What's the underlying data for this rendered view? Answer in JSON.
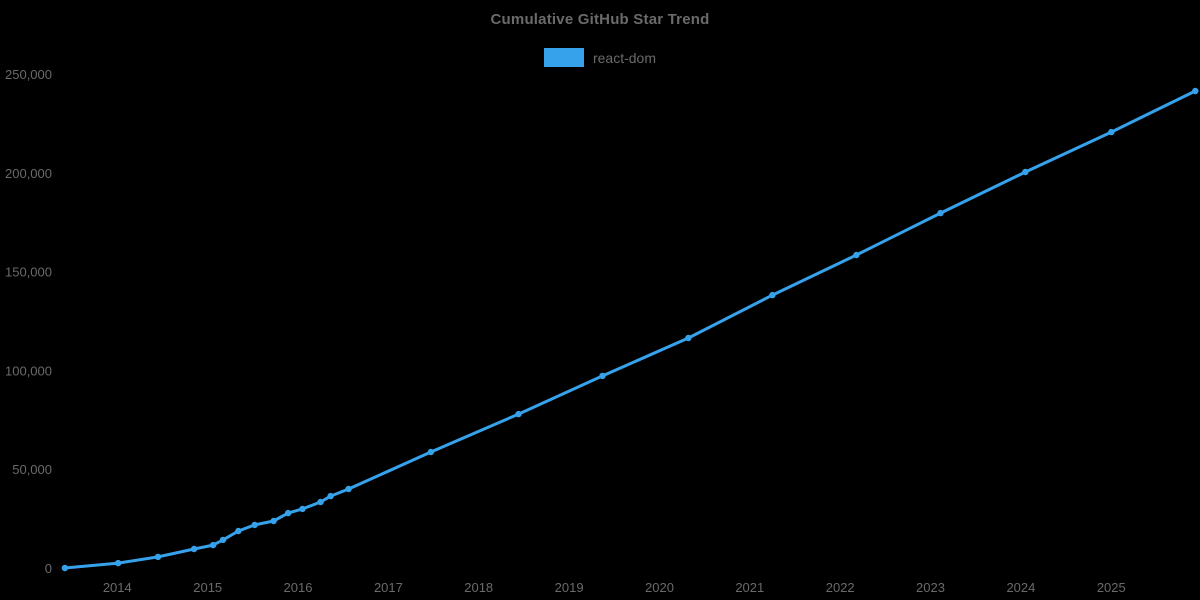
{
  "colors": {
    "accent": "#36A2EB",
    "text": "#6a6a6a",
    "background": "#000000"
  },
  "chart_data": {
    "type": "line",
    "title": "Cumulative GitHub Star Trend",
    "xlabel": "",
    "ylabel": "",
    "xlim": [
      2013.41,
      2025.96
    ],
    "ylim": [
      0,
      250000
    ],
    "grid": false,
    "legend_position": "top",
    "x_ticks": [
      {
        "value": 2014,
        "label": "2014"
      },
      {
        "value": 2015,
        "label": "2015"
      },
      {
        "value": 2016,
        "label": "2016"
      },
      {
        "value": 2017,
        "label": "2017"
      },
      {
        "value": 2018,
        "label": "2018"
      },
      {
        "value": 2019,
        "label": "2019"
      },
      {
        "value": 2020,
        "label": "2020"
      },
      {
        "value": 2021,
        "label": "2021"
      },
      {
        "value": 2022,
        "label": "2022"
      },
      {
        "value": 2023,
        "label": "2023"
      },
      {
        "value": 2024,
        "label": "2024"
      },
      {
        "value": 2025,
        "label": "2025"
      }
    ],
    "y_ticks": [
      {
        "value": 0,
        "label": "0"
      },
      {
        "value": 50000,
        "label": "50,000"
      },
      {
        "value": 100000,
        "label": "100,000"
      },
      {
        "value": 150000,
        "label": "150,000"
      },
      {
        "value": 200000,
        "label": "200,000"
      },
      {
        "value": 250000,
        "label": "250,000"
      }
    ],
    "series": [
      {
        "name": "react-dom",
        "color": "#36A2EB",
        "points": [
          [
            2013.42,
            0
          ],
          [
            2014.01,
            2500
          ],
          [
            2014.45,
            5600
          ],
          [
            2014.85,
            9600
          ],
          [
            2015.06,
            11600
          ],
          [
            2015.17,
            14200
          ],
          [
            2015.34,
            18700
          ],
          [
            2015.52,
            21800
          ],
          [
            2015.73,
            23800
          ],
          [
            2015.89,
            27800
          ],
          [
            2016.05,
            29900
          ],
          [
            2016.25,
            33400
          ],
          [
            2016.36,
            36400
          ],
          [
            2016.56,
            40000
          ],
          [
            2017.47,
            58700
          ],
          [
            2018.44,
            77900
          ],
          [
            2019.37,
            97200
          ],
          [
            2020.32,
            116400
          ],
          [
            2021.25,
            138100
          ],
          [
            2022.18,
            158400
          ],
          [
            2023.11,
            179600
          ],
          [
            2024.05,
            200400
          ],
          [
            2025.0,
            220600
          ],
          [
            2025.93,
            241400
          ]
        ]
      }
    ]
  }
}
